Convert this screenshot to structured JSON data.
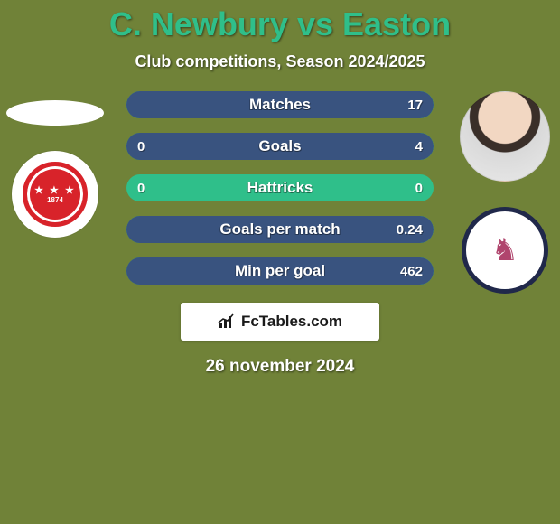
{
  "background_color": "#708238",
  "title": {
    "player1": "C. Newbury",
    "vs": "vs",
    "player2": "Easton",
    "color": "#2fbf8a",
    "fontsize": 36,
    "fontweight": 900
  },
  "subtitle": {
    "text": "Club competitions, Season 2024/2025",
    "color": "#ffffff",
    "fontsize": 18,
    "fontweight": 700
  },
  "left": {
    "player_name": "C. Newbury",
    "club_year": "1874"
  },
  "right": {
    "player_name": "Easton",
    "club_symbol": "♞"
  },
  "bars": {
    "track_color": "#2fbf8a",
    "fill_color": "#39537f",
    "label_color": "#ffffff",
    "value_color": "#ffffff",
    "height": 30,
    "border_radius": 15,
    "label_fontsize": 17,
    "value_fontsize": 15,
    "items": [
      {
        "label": "Matches",
        "left_val": "",
        "right_val": "17",
        "left_pct": 0,
        "right_pct": 100
      },
      {
        "label": "Goals",
        "left_val": "0",
        "right_val": "4",
        "left_pct": 0,
        "right_pct": 100
      },
      {
        "label": "Hattricks",
        "left_val": "0",
        "right_val": "0",
        "left_pct": 0,
        "right_pct": 0
      },
      {
        "label": "Goals per match",
        "left_val": "",
        "right_val": "0.24",
        "left_pct": 0,
        "right_pct": 100
      },
      {
        "label": "Min per goal",
        "left_val": "",
        "right_val": "462",
        "left_pct": 0,
        "right_pct": 100
      }
    ]
  },
  "footer": {
    "brand": "FcTables.com",
    "box_bg": "#ffffff",
    "icon_color": "#1a1a1a"
  },
  "date": {
    "text": "26 november 2024",
    "color": "#ffffff",
    "fontsize": 19,
    "fontweight": 800
  }
}
